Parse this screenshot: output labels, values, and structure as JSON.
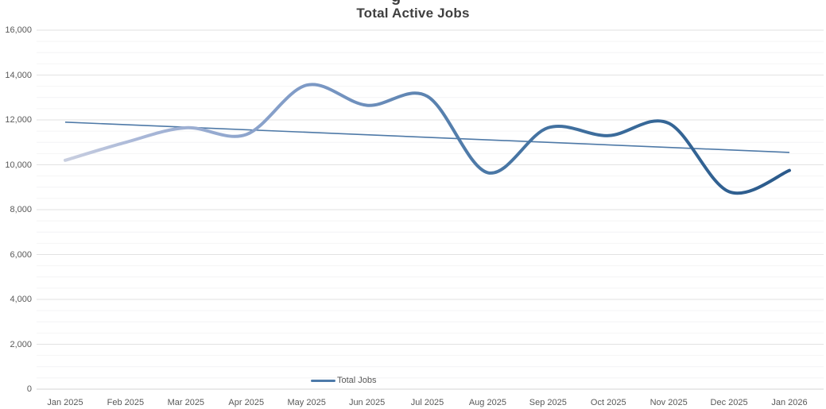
{
  "page": {
    "background": "#ffffff"
  },
  "chart_data": {
    "type": "line",
    "title": "Total Active Jobs",
    "clipped_title_fragment": "g",
    "categories": [
      "Jan 2025",
      "Feb 2025",
      "Mar 2025",
      "Apr 2025",
      "May 2025",
      "Jun 2025",
      "Jul 2025",
      "Aug 2025",
      "Sep 2025",
      "Oct 2025",
      "Nov 2025",
      "Dec 2025",
      "Jan 2026"
    ],
    "series": [
      {
        "name": "Total Jobs",
        "line_style": "smooth",
        "values": [
          10200,
          11000,
          11650,
          11350,
          13550,
          12650,
          13050,
          9650,
          11650,
          11300,
          11850,
          8800,
          9750
        ]
      },
      {
        "name": "linear-trendline",
        "line_style": "straight",
        "endpoints": {
          "start": 11900,
          "end": 10550
        }
      }
    ],
    "ylim": [
      0,
      16000
    ],
    "y_major_step": 2000,
    "y_minor_step": 500,
    "y_tick_labels_top_to_bottom": [
      "16,000",
      "14,000",
      "12,000",
      "10,000",
      "8,000",
      "6,000",
      "4,000",
      "2,000",
      "0"
    ],
    "grid": {
      "major": true,
      "minor": true
    },
    "legend": {
      "position": "bottom-center",
      "items": [
        {
          "label": "Total Jobs",
          "swatch": "line"
        }
      ]
    }
  },
  "colors": {
    "title_text": "#3f3f3f",
    "axis_text": "#595959",
    "grid_major": "#e2e2e2",
    "grid_minor": "#f4f4f5",
    "zero_line": "#d6d6d6",
    "trendline": "#4e79a7",
    "legend_swatch": "#4d7aa9",
    "line_gradient_stops": [
      {
        "offset": 0.0,
        "color": "#c9cfe0"
      },
      {
        "offset": 0.1,
        "color": "#aab8d8"
      },
      {
        "offset": 0.33,
        "color": "#7e9ac6"
      },
      {
        "offset": 0.58,
        "color": "#4b78a6"
      },
      {
        "offset": 0.8,
        "color": "#376898"
      },
      {
        "offset": 1.0,
        "color": "#2b5a8b"
      }
    ]
  }
}
